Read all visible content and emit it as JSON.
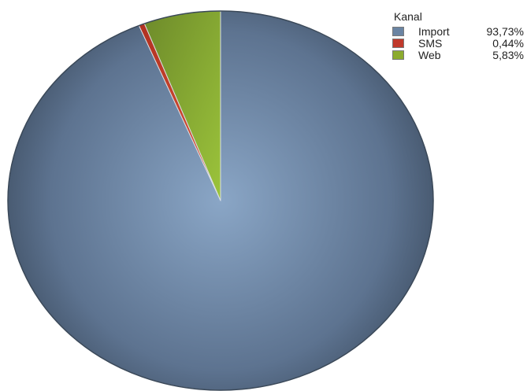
{
  "chart_data": {
    "type": "pie",
    "legend_title": "Kanal",
    "legend_position": "top-right",
    "series": [
      {
        "name": "Import",
        "value": 93.73,
        "label": "93,73%",
        "color": "#6a84a3"
      },
      {
        "name": "SMS",
        "value": 0.44,
        "label": "0,44%",
        "color": "#c0392b"
      },
      {
        "name": "Web",
        "value": 5.83,
        "label": "5,83%",
        "color": "#8cab2e"
      }
    ]
  }
}
